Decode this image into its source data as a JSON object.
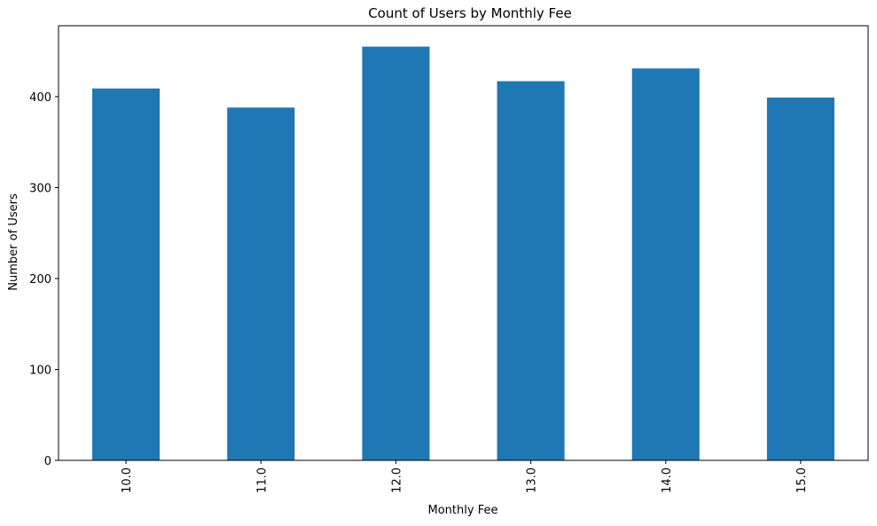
{
  "chart_data": {
    "type": "bar",
    "title": "Count of Users by Monthly Fee",
    "xlabel": "Monthly Fee",
    "ylabel": "Number of Users",
    "categories": [
      "10.0",
      "11.0",
      "12.0",
      "13.0",
      "14.0",
      "15.0"
    ],
    "values": [
      409,
      388,
      455,
      417,
      431,
      399
    ],
    "ylim": [
      0,
      478
    ],
    "yticks": [
      0,
      100,
      200,
      300,
      400
    ],
    "grid": false,
    "legend": "none",
    "bar_color": "#1f77b4"
  }
}
